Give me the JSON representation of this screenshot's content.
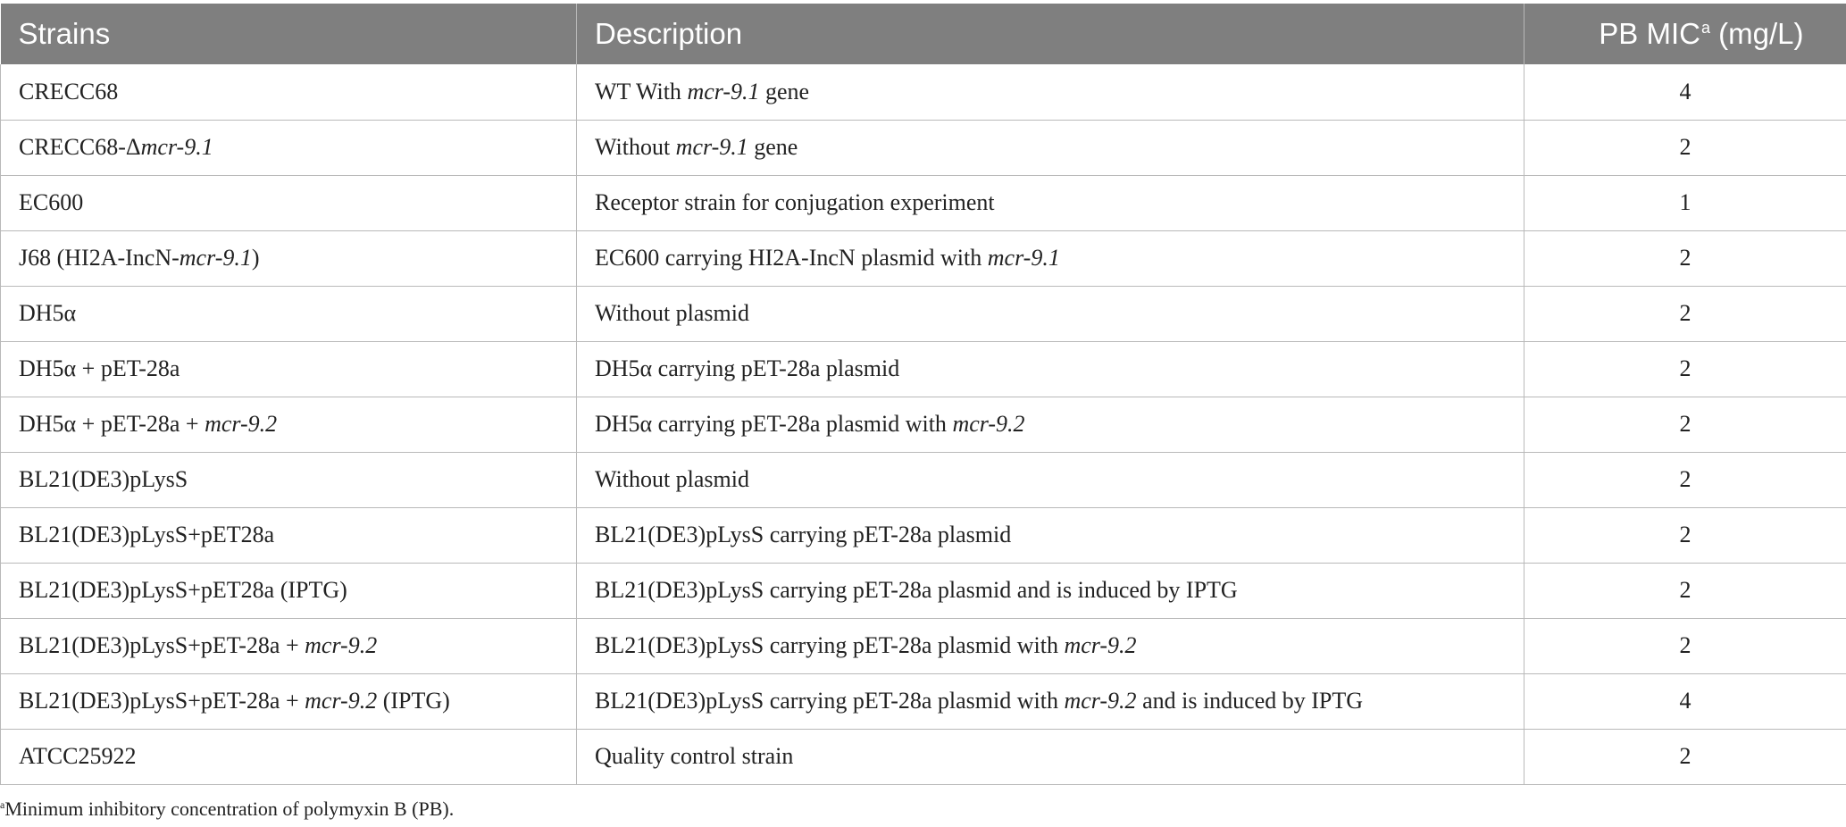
{
  "table": {
    "headers": {
      "strain": "Strains",
      "description": "Description",
      "mic_main": "PB MIC",
      "mic_sup": "a",
      "mic_unit": " (mg/L)"
    },
    "rows": [
      {
        "strain": [
          {
            "t": "CRECC68"
          }
        ],
        "description": [
          {
            "t": "WT With "
          },
          {
            "t": "mcr-9.1",
            "i": true
          },
          {
            "t": " gene"
          }
        ],
        "mic": "4"
      },
      {
        "strain": [
          {
            "t": "CRECC68-Δ"
          },
          {
            "t": "mcr-9.1",
            "i": true
          }
        ],
        "description": [
          {
            "t": "Without "
          },
          {
            "t": "mcr-9.1",
            "i": true
          },
          {
            "t": " gene"
          }
        ],
        "mic": "2"
      },
      {
        "strain": [
          {
            "t": "EC600"
          }
        ],
        "description": [
          {
            "t": "Receptor strain for conjugation experiment"
          }
        ],
        "mic": "1"
      },
      {
        "strain": [
          {
            "t": "J68 (HI2A-IncN-"
          },
          {
            "t": "mcr-9.1",
            "i": true
          },
          {
            "t": ")"
          }
        ],
        "description": [
          {
            "t": "EC600 carrying HI2A-IncN plasmid with "
          },
          {
            "t": "mcr-9.1",
            "i": true
          }
        ],
        "mic": "2"
      },
      {
        "strain": [
          {
            "t": "DH5α"
          }
        ],
        "description": [
          {
            "t": "Without plasmid"
          }
        ],
        "mic": "2"
      },
      {
        "strain": [
          {
            "t": "DH5α + pET-28a"
          }
        ],
        "description": [
          {
            "t": "DH5α carrying pET-28a plasmid"
          }
        ],
        "mic": "2"
      },
      {
        "strain": [
          {
            "t": "DH5α + pET-28a + "
          },
          {
            "t": "mcr-9.2",
            "i": true
          }
        ],
        "description": [
          {
            "t": "DH5α carrying pET-28a plasmid with "
          },
          {
            "t": "mcr-9.2",
            "i": true
          }
        ],
        "mic": "2"
      },
      {
        "strain": [
          {
            "t": "BL21(DE3)pLysS"
          }
        ],
        "description": [
          {
            "t": "Without plasmid"
          }
        ],
        "mic": "2"
      },
      {
        "strain": [
          {
            "t": "BL21(DE3)pLysS+pET28a"
          }
        ],
        "description": [
          {
            "t": "BL21(DE3)pLysS carrying pET-28a plasmid"
          }
        ],
        "mic": "2"
      },
      {
        "strain": [
          {
            "t": "BL21(DE3)pLysS+pET28a (IPTG)"
          }
        ],
        "description": [
          {
            "t": "BL21(DE3)pLysS carrying pET-28a plasmid and is induced by IPTG"
          }
        ],
        "mic": "2"
      },
      {
        "strain": [
          {
            "t": "BL21(DE3)pLysS+pET-28a + "
          },
          {
            "t": "mcr-9.2",
            "i": true
          }
        ],
        "description": [
          {
            "t": "BL21(DE3)pLysS carrying pET-28a plasmid with "
          },
          {
            "t": "mcr-9.2",
            "i": true
          }
        ],
        "mic": "2"
      },
      {
        "strain": [
          {
            "t": "BL21(DE3)pLysS+pET-28a + "
          },
          {
            "t": "mcr-9.2",
            "i": true
          },
          {
            "t": " (IPTG)"
          }
        ],
        "description": [
          {
            "t": "BL21(DE3)pLysS carrying pET-28a plasmid with "
          },
          {
            "t": "mcr-9.2",
            "i": true
          },
          {
            "t": " and is induced by IPTG"
          }
        ],
        "mic": "4"
      },
      {
        "strain": [
          {
            "t": "ATCC25922"
          }
        ],
        "description": [
          {
            "t": "Quality control strain"
          }
        ],
        "mic": "2"
      }
    ]
  },
  "footnote": {
    "marker": "a",
    "text": "Minimum inhibitory concentration of polymyxin B (PB)."
  }
}
